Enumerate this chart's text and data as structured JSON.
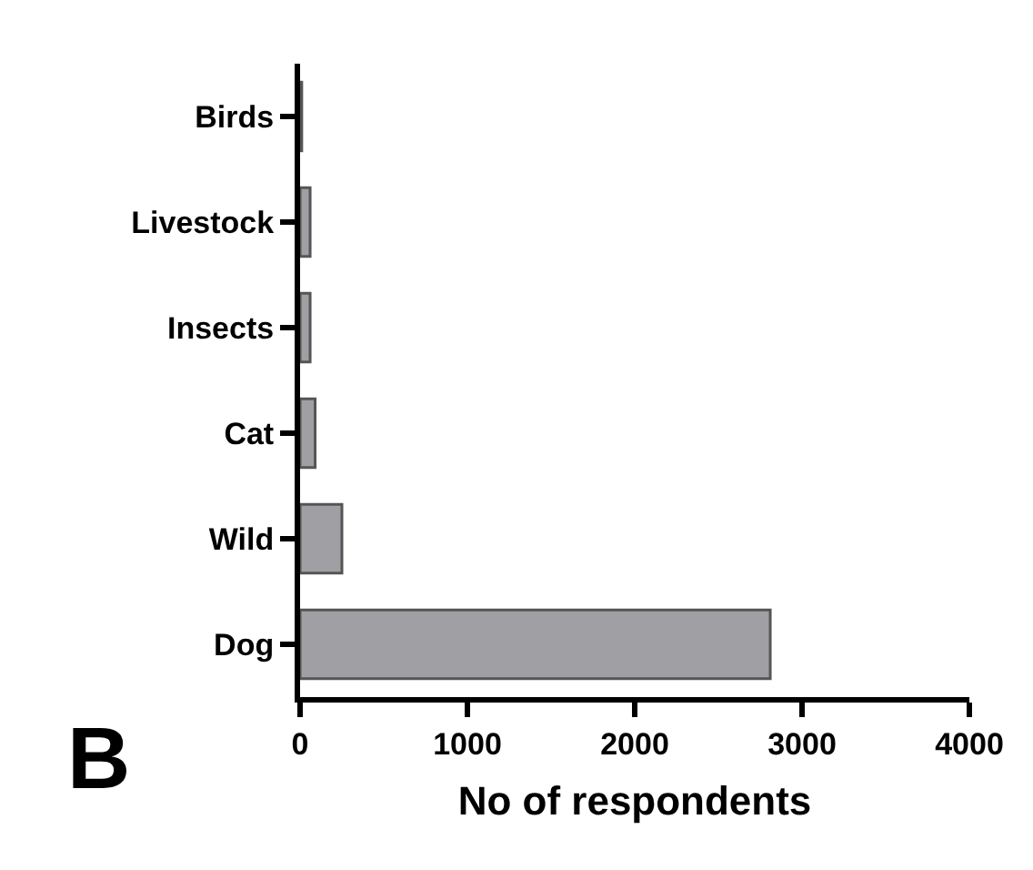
{
  "chart_data": {
    "type": "bar",
    "orientation": "horizontal",
    "xlabel": "No of respondents",
    "annotations": [
      "B"
    ],
    "categories": [
      "Birds",
      "Livestock",
      "Insects",
      "Cat",
      "Wild",
      "Dog"
    ],
    "values": [
      10,
      60,
      60,
      90,
      250,
      2810
    ],
    "color": "#a0a0a4",
    "xlim": [
      0,
      4000
    ],
    "xticks": [
      0,
      1000,
      2000,
      3000,
      4000
    ]
  }
}
